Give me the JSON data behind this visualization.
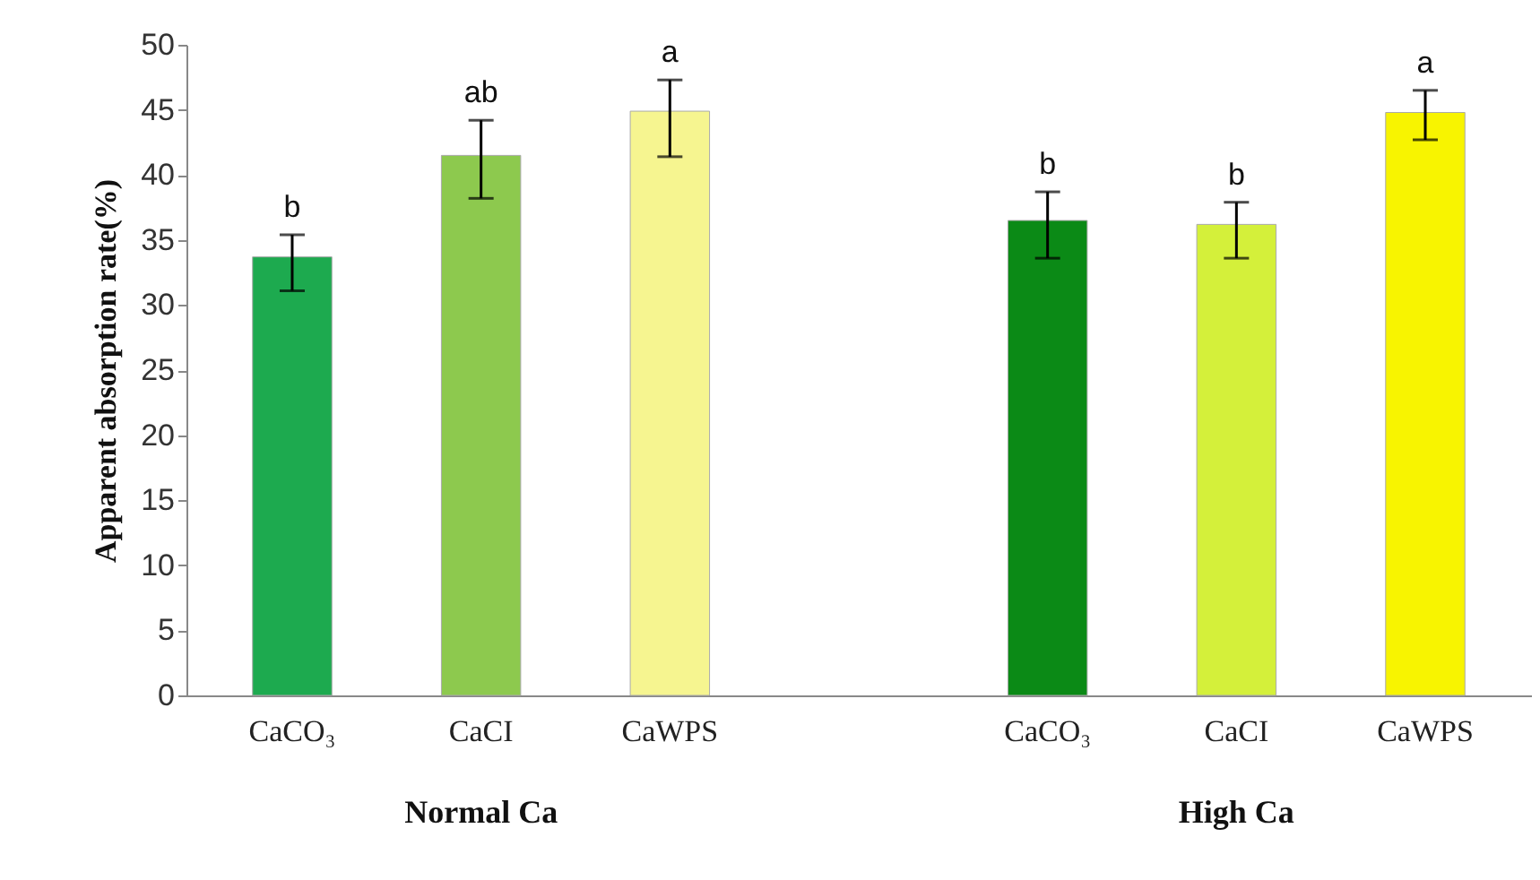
{
  "chart_data": {
    "type": "bar",
    "ylabel": "Apparent absorption rate(%)",
    "categories": [
      "CaCO₃",
      "CaCI",
      "CaWPS",
      null,
      "CaCO₃",
      "CaCI",
      "CaWPS"
    ],
    "values": [
      33.7,
      41.5,
      44.9,
      null,
      36.5,
      36.2,
      44.8
    ],
    "colors": [
      "#1daa4f",
      "#8dc94e",
      "#f6f590",
      null,
      "#0b8a16",
      "#d4f03a",
      "#f8f400"
    ],
    "errors": [
      [
        31.1,
        35.4
      ],
      [
        38.2,
        44.2
      ],
      [
        41.4,
        47.3
      ],
      null,
      [
        33.6,
        38.7
      ],
      [
        33.6,
        37.9
      ],
      [
        42.7,
        46.5
      ]
    ],
    "value_labels": [
      "b",
      "ab",
      "a",
      null,
      "b",
      "b",
      "a"
    ],
    "annotations": [
      "Normal Ca",
      "High Ca"
    ],
    "ylim": [
      0,
      50
    ],
    "yticks": [
      0,
      5,
      10,
      15,
      20,
      25,
      30,
      35,
      40,
      45,
      50
    ],
    "grid": false
  }
}
